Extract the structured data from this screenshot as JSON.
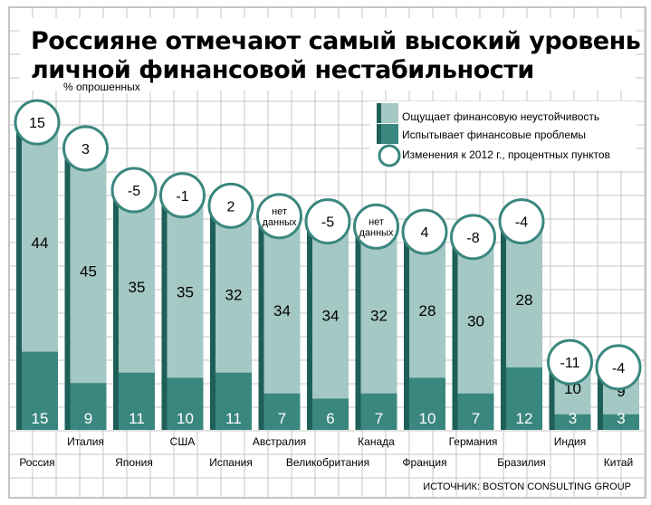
{
  "chart_data": {
    "type": "bar",
    "stacked": true,
    "title_lines": [
      "Россияне отмечают самый высокий уровень",
      "личной финансовой нестабильности"
    ],
    "ylabel": "% опрошенных",
    "categories": [
      "Россия",
      "Италия",
      "Япония",
      "США",
      "Испания",
      "Австралия",
      "Великобритания",
      "Канада",
      "Франция",
      "Германия",
      "Бразилия",
      "Индия",
      "Китай"
    ],
    "series": [
      {
        "name": "Испытывает финансовые проблемы",
        "color": "#3a877f",
        "values": [
          15,
          9,
          11,
          10,
          11,
          7,
          6,
          7,
          10,
          7,
          12,
          3,
          3
        ]
      },
      {
        "name": "Ощущает финансовую неустойчивость",
        "color": "#a4c8c4",
        "values": [
          44,
          45,
          35,
          35,
          32,
          34,
          34,
          32,
          28,
          30,
          28,
          10,
          9
        ]
      }
    ],
    "change_legend": "Изменения к 2012 г., процентных пунктов",
    "changes": [
      "15",
      "3",
      "-5",
      "-1",
      "2",
      "нет данных",
      "-5",
      "нет данных",
      "4",
      "-8",
      "-4",
      "-11",
      "-4"
    ],
    "source": "ИСТОЧНИК: BOSTON CONSULTING GROUP",
    "colors": {
      "dark": "#3a877f",
      "light": "#a4c8c4",
      "side": "#1f5f59",
      "grid": "#c4c4c4"
    }
  }
}
